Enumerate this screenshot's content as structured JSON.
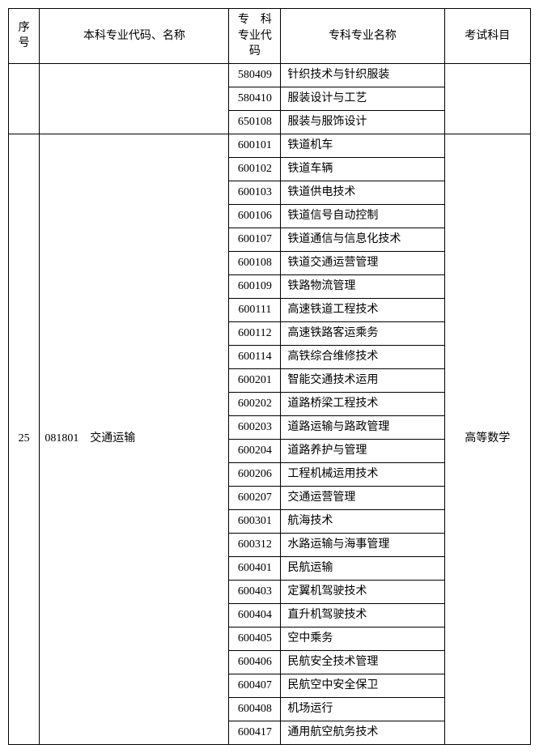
{
  "headers": {
    "seq": "序号",
    "ugname": "本科专业代码、名称",
    "code_l1": "专　科",
    "code_l2": "专业代码",
    "spname": "专科专业名称",
    "exam": "考试科目"
  },
  "group1": {
    "rows": [
      {
        "code": "580409",
        "name": "针织技术与针织服装"
      },
      {
        "code": "580410",
        "name": "服装设计与工艺"
      },
      {
        "code": "650108",
        "name": "服装与服饰设计"
      }
    ]
  },
  "group2": {
    "seq": "25",
    "ugcode": "081801",
    "ugname": "交通运输",
    "exam": "高等数学",
    "rows": [
      {
        "code": "600101",
        "name": "铁道机车"
      },
      {
        "code": "600102",
        "name": "铁道车辆"
      },
      {
        "code": "600103",
        "name": "铁道供电技术"
      },
      {
        "code": "600106",
        "name": "铁道信号自动控制"
      },
      {
        "code": "600107",
        "name": "铁道通信与信息化技术"
      },
      {
        "code": "600108",
        "name": "铁道交通运营管理"
      },
      {
        "code": "600109",
        "name": "铁路物流管理"
      },
      {
        "code": "600111",
        "name": "高速铁道工程技术"
      },
      {
        "code": "600112",
        "name": "高速铁路客运乘务"
      },
      {
        "code": "600114",
        "name": "高铁综合维修技术"
      },
      {
        "code": "600201",
        "name": "智能交通技术运用"
      },
      {
        "code": "600202",
        "name": "道路桥梁工程技术"
      },
      {
        "code": "600203",
        "name": "道路运输与路政管理"
      },
      {
        "code": "600204",
        "name": "道路养护与管理"
      },
      {
        "code": "600206",
        "name": "工程机械运用技术"
      },
      {
        "code": "600207",
        "name": "交通运营管理"
      },
      {
        "code": "600301",
        "name": "航海技术"
      },
      {
        "code": "600312",
        "name": "水路运输与海事管理"
      },
      {
        "code": "600401",
        "name": "民航运输"
      },
      {
        "code": "600403",
        "name": "定翼机驾驶技术"
      },
      {
        "code": "600404",
        "name": "直升机驾驶技术"
      },
      {
        "code": "600405",
        "name": "空中乘务"
      },
      {
        "code": "600406",
        "name": "民航安全技术管理"
      },
      {
        "code": "600407",
        "name": "民航空中安全保卫"
      },
      {
        "code": "600408",
        "name": "机场运行"
      },
      {
        "code": "600417",
        "name": "通用航空航务技术"
      }
    ]
  }
}
